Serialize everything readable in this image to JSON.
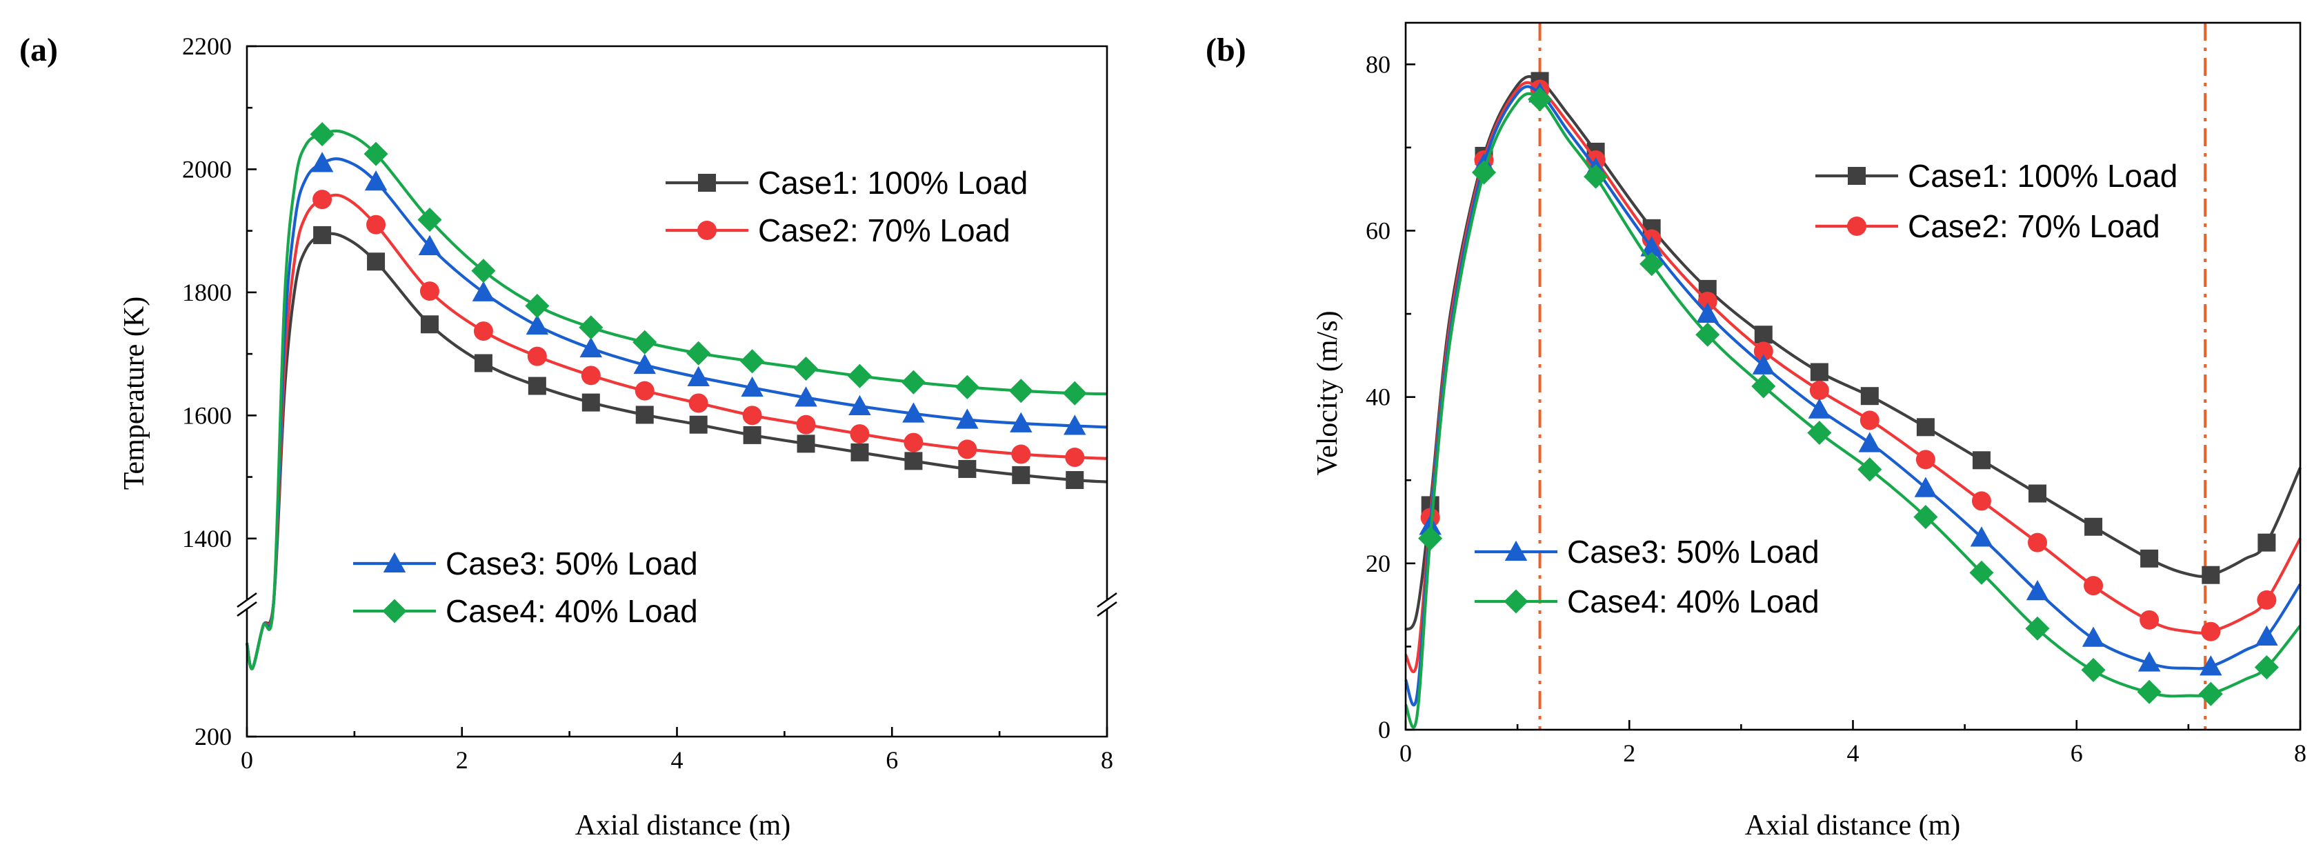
{
  "chart_data": [
    {
      "panel": "(a)",
      "type": "line",
      "xlabel": "Axial distance (m)",
      "ylabel": "Temperature (K)",
      "xlim": [
        0,
        8
      ],
      "ylim_upper": [
        1300,
        2200
      ],
      "ylim_lower": [
        200,
        350
      ],
      "axis_break": "between 350 and 1300",
      "x_ticks": [
        "0",
        "2",
        "4",
        "6",
        "8"
      ],
      "y_ticks": [
        "200",
        "1400",
        "1600",
        "1800",
        "2000",
        "2200"
      ],
      "legend": [
        {
          "label": "Case1: 100% Load",
          "series": 0,
          "placement": "upper-right"
        },
        {
          "label": "Case2: 70% Load",
          "series": 1,
          "placement": "upper-right"
        },
        {
          "label": "Case3: 50% Load",
          "series": 2,
          "placement": "lower-left"
        },
        {
          "label": "Case4: 40% Load",
          "series": 3,
          "placement": "lower-left"
        }
      ],
      "series": [
        {
          "name": "Case1: 100% Load",
          "color": "#404040",
          "marker": "square",
          "x": [
            0,
            0.05,
            0.15,
            0.25,
            0.35,
            0.45,
            0.55,
            0.7,
            0.9,
            1.2,
            1.7,
            2.2,
            2.7,
            3.2,
            3.7,
            4.2,
            4.7,
            5.2,
            5.7,
            6.2,
            6.7,
            7.2,
            7.7,
            8.0
          ],
          "y": [
            310,
            280,
            330,
            1300,
            1640,
            1810,
            1870,
            1893,
            1890,
            1850,
            1748,
            1685,
            1648,
            1621,
            1601,
            1585,
            1568,
            1554,
            1540,
            1526,
            1513,
            1503,
            1495,
            1492
          ],
          "marker_x": [
            0.7,
            1.2,
            1.7,
            2.2,
            2.7,
            3.2,
            3.7,
            4.2,
            4.7,
            5.2,
            5.7,
            6.2,
            6.7,
            7.2,
            7.7
          ]
        },
        {
          "name": "Case2: 70% Load",
          "color": "#f03838",
          "marker": "circle",
          "x": [
            0,
            0.05,
            0.15,
            0.25,
            0.35,
            0.45,
            0.55,
            0.7,
            0.9,
            1.2,
            1.7,
            2.2,
            2.7,
            3.2,
            3.7,
            4.2,
            4.7,
            5.2,
            5.7,
            6.2,
            6.7,
            7.2,
            7.7,
            8.0
          ],
          "y": [
            310,
            280,
            330,
            1300,
            1680,
            1860,
            1925,
            1951,
            1955,
            1910,
            1802,
            1737,
            1696,
            1665,
            1640,
            1620,
            1600,
            1585,
            1570,
            1556,
            1545,
            1537,
            1532,
            1530
          ],
          "marker_x": [
            0.7,
            1.2,
            1.7,
            2.2,
            2.7,
            3.2,
            3.7,
            4.2,
            4.7,
            5.2,
            5.7,
            6.2,
            6.7,
            7.2,
            7.7
          ]
        },
        {
          "name": "Case3: 50% Load",
          "color": "#1a5fd0",
          "marker": "triangle",
          "x": [
            0,
            0.05,
            0.15,
            0.25,
            0.35,
            0.45,
            0.55,
            0.7,
            0.9,
            1.2,
            1.7,
            2.2,
            2.7,
            3.2,
            3.7,
            4.2,
            4.7,
            5.2,
            5.7,
            6.2,
            6.7,
            7.2,
            7.7,
            8.0
          ],
          "y": [
            310,
            280,
            330,
            1300,
            1730,
            1920,
            1985,
            2010,
            2015,
            1980,
            1875,
            1800,
            1746,
            1709,
            1682,
            1662,
            1645,
            1629,
            1615,
            1603,
            1593,
            1587,
            1583,
            1581
          ],
          "marker_x": [
            0.7,
            1.2,
            1.7,
            2.2,
            2.7,
            3.2,
            3.7,
            4.2,
            4.7,
            5.2,
            5.7,
            6.2,
            6.7,
            7.2,
            7.7
          ]
        },
        {
          "name": "Case4: 40% Load",
          "color": "#18a84c",
          "marker": "diamond",
          "x": [
            0,
            0.05,
            0.15,
            0.25,
            0.35,
            0.45,
            0.55,
            0.7,
            0.9,
            1.2,
            1.7,
            2.2,
            2.7,
            3.2,
            3.7,
            4.2,
            4.7,
            5.2,
            5.7,
            6.2,
            6.7,
            7.2,
            7.7,
            8.0
          ],
          "y": [
            310,
            280,
            330,
            1300,
            1790,
            1980,
            2040,
            2057,
            2060,
            2025,
            1918,
            1835,
            1778,
            1743,
            1719,
            1701,
            1688,
            1676,
            1664,
            1654,
            1646,
            1640,
            1636,
            1635
          ],
          "marker_x": [
            0.7,
            1.2,
            1.7,
            2.2,
            2.7,
            3.2,
            3.7,
            4.2,
            4.7,
            5.2,
            5.7,
            6.2,
            6.7,
            7.2,
            7.7
          ]
        }
      ]
    },
    {
      "panel": "(b)",
      "type": "line",
      "xlabel": "Axial distance (m)",
      "ylabel": "Velocity (m/s)",
      "xlim": [
        0,
        8
      ],
      "ylim": [
        0,
        85
      ],
      "x_ticks": [
        "0",
        "2",
        "4",
        "6",
        "8"
      ],
      "y_ticks": [
        "0",
        "20",
        "40",
        "60",
        "80"
      ],
      "reference_lines_x": [
        1.2,
        7.15
      ],
      "reference_line_color": "#e8622a",
      "legend": [
        {
          "label": "Case1: 100% Load",
          "series": 0,
          "placement": "upper-right"
        },
        {
          "label": "Case2: 70% Load",
          "series": 1,
          "placement": "upper-right"
        },
        {
          "label": "Case3: 50% Load",
          "series": 2,
          "placement": "lower-left"
        },
        {
          "label": "Case4: 40% Load",
          "series": 3,
          "placement": "lower-left"
        }
      ],
      "series": [
        {
          "name": "Case1: 100% Load",
          "color": "#404040",
          "marker": "square",
          "x": [
            0,
            0.1,
            0.22,
            0.4,
            0.7,
            1.0,
            1.2,
            1.45,
            1.7,
            2.2,
            2.7,
            3.2,
            3.7,
            4.2,
            4.7,
            5.2,
            5.7,
            6.2,
            6.7,
            7.0,
            7.2,
            7.5,
            7.7,
            8.0
          ],
          "y": [
            12,
            14,
            27,
            50,
            69,
            77.5,
            78,
            74,
            69.5,
            60.3,
            53,
            47.5,
            43,
            39.8,
            36,
            32,
            28,
            24,
            20.2,
            18.7,
            18.6,
            20.5,
            22.5,
            31.5
          ],
          "marker_x": [
            0.22,
            0.7,
            1.2,
            1.7,
            2.2,
            2.7,
            3.2,
            3.7,
            4.15,
            4.65,
            5.15,
            5.65,
            6.15,
            6.65,
            7.2,
            7.7
          ]
        },
        {
          "name": "Case2: 70% Load",
          "color": "#f03838",
          "marker": "circle",
          "x": [
            0,
            0.1,
            0.22,
            0.4,
            0.7,
            1.0,
            1.2,
            1.45,
            1.7,
            2.2,
            2.7,
            3.2,
            3.7,
            4.2,
            4.7,
            5.2,
            5.7,
            6.2,
            6.7,
            7.0,
            7.2,
            7.5,
            7.7,
            8.0
          ],
          "y": [
            9,
            8,
            25.5,
            49,
            68.5,
            77,
            77,
            73,
            68.5,
            59,
            51.5,
            45.5,
            40.8,
            36.8,
            32,
            27,
            22,
            16.8,
            12.8,
            11.8,
            11.8,
            13.5,
            15.6,
            23
          ],
          "marker_x": [
            0.22,
            0.7,
            1.2,
            1.7,
            2.2,
            2.7,
            3.2,
            3.7,
            4.15,
            4.65,
            5.15,
            5.65,
            6.15,
            6.65,
            7.2,
            7.7
          ]
        },
        {
          "name": "Case3: 50% Load",
          "color": "#1a5fd0",
          "marker": "triangle",
          "x": [
            0,
            0.1,
            0.22,
            0.4,
            0.7,
            1.0,
            1.2,
            1.45,
            1.7,
            2.2,
            2.7,
            3.2,
            3.7,
            4.2,
            4.7,
            5.2,
            5.7,
            6.2,
            6.7,
            7.0,
            7.2,
            7.5,
            7.7,
            8.0
          ],
          "y": [
            6,
            4,
            24.5,
            48,
            68,
            76.5,
            76.5,
            72,
            67.5,
            58,
            50,
            43.8,
            38.5,
            34,
            28.5,
            22.5,
            16,
            10.5,
            7.8,
            7.4,
            7.6,
            9.5,
            11.2,
            17.5
          ],
          "marker_x": [
            0.22,
            0.7,
            1.2,
            1.7,
            2.2,
            2.7,
            3.2,
            3.7,
            4.15,
            4.65,
            5.15,
            5.65,
            6.15,
            6.65,
            7.2,
            7.7
          ]
        },
        {
          "name": "Case4: 40% Load",
          "color": "#18a84c",
          "marker": "diamond",
          "x": [
            0,
            0.1,
            0.22,
            0.4,
            0.7,
            1.0,
            1.2,
            1.45,
            1.7,
            2.2,
            2.7,
            3.2,
            3.7,
            4.2,
            4.7,
            5.2,
            5.7,
            6.2,
            6.7,
            7.0,
            7.2,
            7.5,
            7.7,
            8.0
          ],
          "y": [
            3,
            1.5,
            23,
            47,
            67,
            75.5,
            75.8,
            71,
            66.5,
            56,
            47.5,
            41.3,
            35.7,
            30.8,
            25,
            18.2,
            11.5,
            6.7,
            4.3,
            4.1,
            4.3,
            6,
            7.5,
            12.5
          ],
          "marker_x": [
            0.22,
            0.7,
            1.2,
            1.7,
            2.2,
            2.7,
            3.2,
            3.7,
            4.15,
            4.65,
            5.15,
            5.65,
            6.15,
            6.65,
            7.2,
            7.7
          ]
        }
      ]
    }
  ]
}
